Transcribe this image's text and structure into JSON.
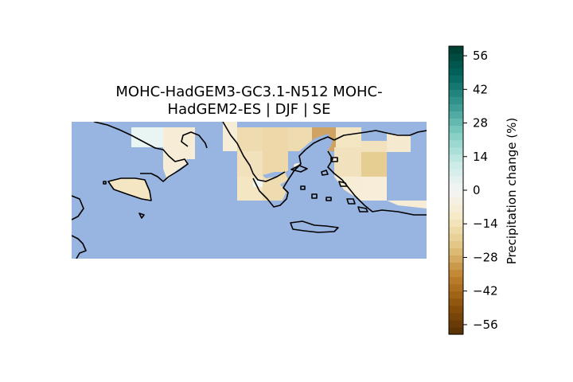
{
  "title": {
    "line1": "MOHC-HadGEM3-GC3.1-N512 MOHC-",
    "line2": "HadGEM2-ES | DJF | SE"
  },
  "colorbar": {
    "label": "Precipitation change (%)",
    "ticks": [
      56,
      42,
      28,
      14,
      0,
      -14,
      -28,
      -42,
      -56
    ],
    "tick_labels": [
      "56",
      "42",
      "28",
      "14",
      "0",
      "−14",
      "−28",
      "−42",
      "−56"
    ],
    "vmin": -60,
    "vmax": 60,
    "levels": 40,
    "colormap": "BrBG"
  },
  "map": {
    "sea_color": "#98b5e2",
    "coastline_color": "#000000",
    "region": "SE"
  }
}
